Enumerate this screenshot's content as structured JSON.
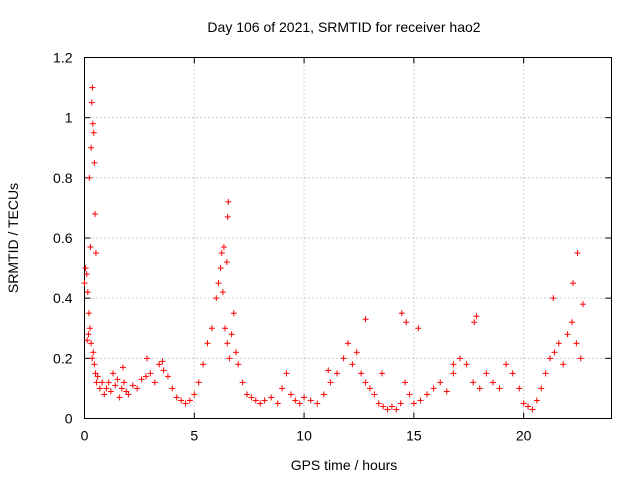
{
  "chart_data": {
    "type": "scatter",
    "title": "Day 106 of 2021, SRMTID for receiver hao2",
    "xlabel": "GPS time / hours",
    "ylabel": "SRMTID / TECUs",
    "xlim": [
      0,
      24
    ],
    "ylim": [
      0,
      1.2
    ],
    "xticks": [
      0,
      5,
      10,
      15,
      20
    ],
    "xtick_labels": [
      "0",
      "5",
      "10",
      "15",
      "20"
    ],
    "yticks": [
      0,
      0.2,
      0.4,
      0.6,
      0.8,
      1.0,
      1.2
    ],
    "ytick_labels": [
      "0",
      "0.2",
      "0.4",
      "0.6",
      "0.8",
      "1",
      "1.2"
    ],
    "grid": true,
    "marker": "plus",
    "color": "#ff0000",
    "series": [
      {
        "name": "SRMTID",
        "x": [
          0.0,
          0.05,
          0.1,
          0.15,
          0.2,
          0.25,
          0.3,
          0.35,
          0.4,
          0.45,
          0.5,
          0.55,
          0.6,
          0.7,
          0.8,
          0.9,
          1.0,
          1.1,
          1.2,
          1.3,
          1.4,
          1.5,
          1.6,
          1.7,
          1.8,
          1.9,
          2.0,
          2.2,
          2.4,
          2.6,
          2.8,
          3.0,
          3.2,
          3.4,
          3.6,
          3.8,
          4.0,
          4.2,
          4.4,
          4.6,
          4.8,
          5.0,
          5.2,
          5.4,
          5.6,
          5.8,
          6.0,
          6.1,
          6.2,
          6.3,
          6.4,
          6.5,
          6.6,
          6.7,
          6.8,
          6.9,
          7.0,
          7.2,
          7.4,
          7.6,
          7.8,
          8.0,
          8.2,
          8.5,
          8.8,
          9.0,
          9.2,
          9.4,
          9.6,
          9.8,
          10.0,
          10.3,
          10.6,
          10.9,
          11.2,
          11.5,
          11.8,
          12.0,
          12.2,
          12.4,
          12.6,
          12.8,
          13.0,
          13.2,
          13.4,
          13.6,
          13.8,
          14.0,
          14.2,
          14.4,
          14.6,
          14.8,
          15.0,
          15.3,
          15.6,
          15.9,
          16.2,
          16.5,
          16.8,
          17.1,
          17.4,
          17.7,
          18.0,
          18.3,
          18.6,
          18.9,
          19.2,
          19.5,
          19.8,
          20.0,
          20.2,
          20.4,
          20.6,
          20.8,
          21.0,
          21.2,
          21.4,
          21.6,
          21.8,
          22.0,
          22.2,
          22.4,
          22.6,
          22.7,
          0.22,
          0.3,
          0.33,
          0.36,
          0.38,
          0.42,
          0.45,
          0.48,
          0.52,
          0.27,
          0.18,
          0.12,
          6.55,
          6.52,
          6.35,
          6.25,
          6.48,
          14.45,
          14.65,
          12.8,
          15.2,
          17.75,
          17.85,
          22.45,
          22.25,
          21.35,
          2.85,
          3.55,
          1.75,
          11.1,
          13.55,
          16.8
        ],
        "y": [
          0.45,
          0.5,
          0.48,
          0.42,
          0.35,
          0.3,
          0.25,
          0.2,
          0.22,
          0.18,
          0.15,
          0.12,
          0.14,
          0.1,
          0.12,
          0.08,
          0.1,
          0.12,
          0.09,
          0.15,
          0.11,
          0.13,
          0.07,
          0.1,
          0.12,
          0.09,
          0.08,
          0.11,
          0.1,
          0.13,
          0.14,
          0.15,
          0.12,
          0.18,
          0.16,
          0.14,
          0.1,
          0.07,
          0.06,
          0.05,
          0.06,
          0.08,
          0.12,
          0.18,
          0.25,
          0.3,
          0.4,
          0.45,
          0.5,
          0.42,
          0.3,
          0.25,
          0.2,
          0.28,
          0.35,
          0.22,
          0.18,
          0.12,
          0.08,
          0.07,
          0.06,
          0.05,
          0.06,
          0.07,
          0.05,
          0.1,
          0.15,
          0.08,
          0.06,
          0.05,
          0.07,
          0.06,
          0.05,
          0.08,
          0.12,
          0.15,
          0.2,
          0.25,
          0.18,
          0.22,
          0.15,
          0.12,
          0.1,
          0.08,
          0.05,
          0.04,
          0.03,
          0.04,
          0.03,
          0.05,
          0.12,
          0.08,
          0.05,
          0.06,
          0.08,
          0.1,
          0.12,
          0.09,
          0.15,
          0.2,
          0.18,
          0.12,
          0.1,
          0.15,
          0.12,
          0.1,
          0.18,
          0.15,
          0.1,
          0.05,
          0.04,
          0.03,
          0.06,
          0.1,
          0.15,
          0.2,
          0.22,
          0.25,
          0.18,
          0.28,
          0.32,
          0.25,
          0.2,
          0.38,
          0.8,
          0.9,
          1.05,
          1.1,
          0.98,
          0.95,
          0.85,
          0.68,
          0.55,
          0.57,
          0.28,
          0.26,
          0.72,
          0.67,
          0.57,
          0.55,
          0.52,
          0.35,
          0.32,
          0.33,
          0.3,
          0.32,
          0.34,
          0.55,
          0.45,
          0.4,
          0.2,
          0.19,
          0.17,
          0.16,
          0.15,
          0.18
        ]
      }
    ]
  }
}
